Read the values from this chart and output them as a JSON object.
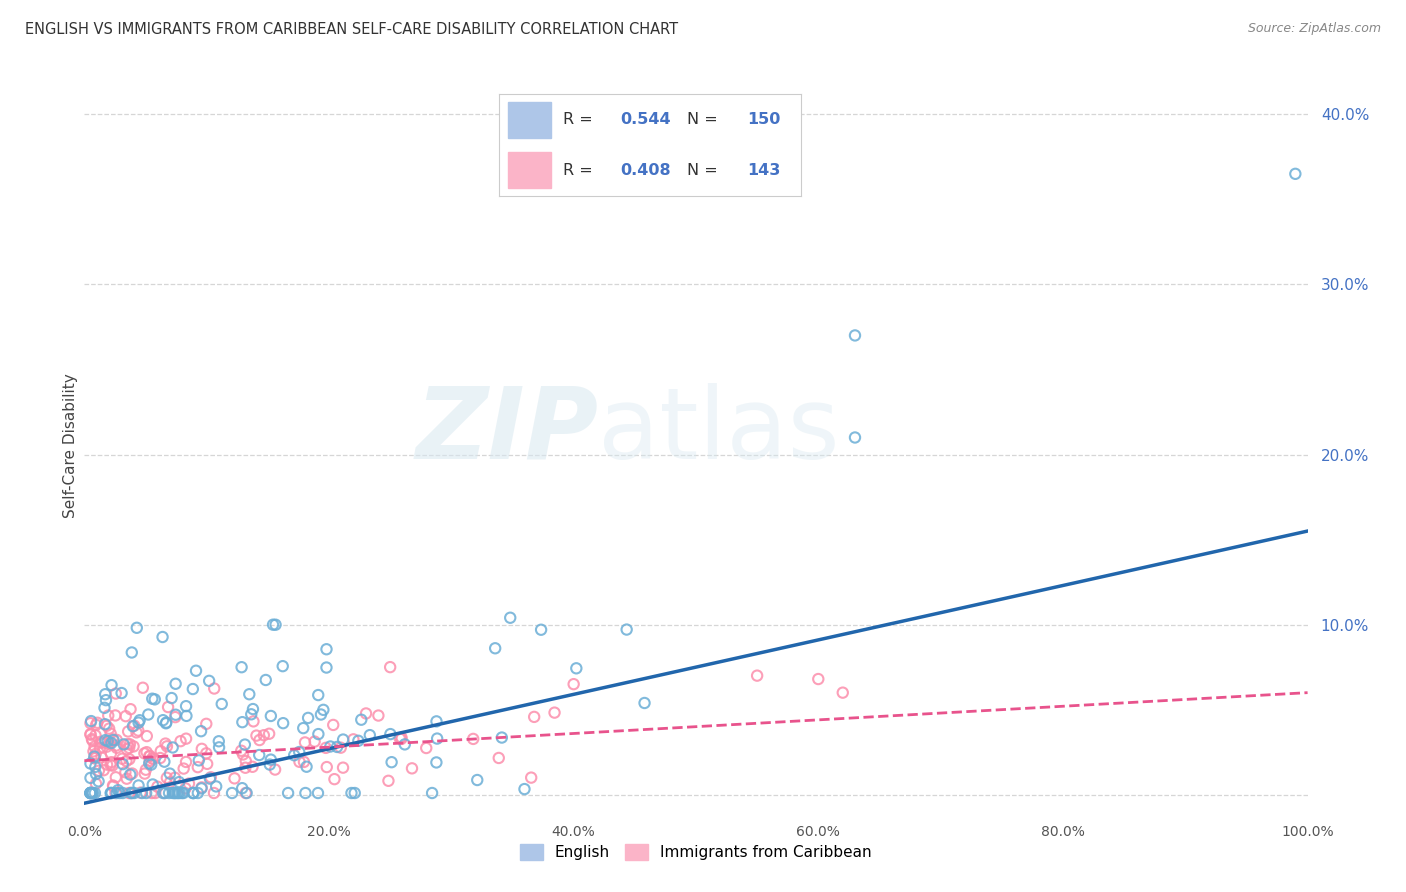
{
  "title": "ENGLISH VS IMMIGRANTS FROM CARIBBEAN SELF-CARE DISABILITY CORRELATION CHART",
  "source": "Source: ZipAtlas.com",
  "ylabel": "Self-Care Disability",
  "watermark": "ZIPatlas",
  "english_R": 0.544,
  "english_N": 150,
  "caribbean_R": 0.408,
  "caribbean_N": 143,
  "english_color": "#6baed6",
  "caribbean_color": "#fc8eac",
  "english_line_color": "#2166ac",
  "caribbean_line_color": "#e8538c",
  "background_color": "#ffffff",
  "xlim": [
    0,
    1.0
  ],
  "ylim": [
    0,
    0.42
  ],
  "xtick_vals": [
    0,
    0.2,
    0.4,
    0.6,
    0.8,
    1.0
  ],
  "ytick_vals": [
    0,
    0.1,
    0.2,
    0.3,
    0.4
  ],
  "legend_R1": "0.544",
  "legend_N1": "150",
  "legend_R2": "0.408",
  "legend_N2": "143",
  "label_english": "English",
  "label_caribbean": "Immigrants from Caribbean"
}
